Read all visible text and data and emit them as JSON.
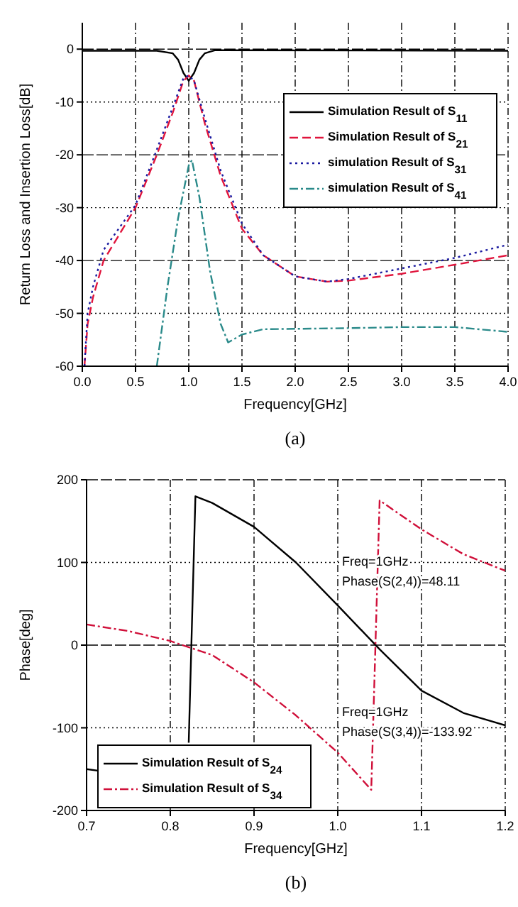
{
  "chart_data": [
    {
      "type": "line",
      "xlabel": "Frequency[GHz]",
      "ylabel": "Return Loss and Insertion Loss[dB]",
      "xlim": [
        0,
        4
      ],
      "ylim": [
        -60,
        5
      ],
      "xticks": [
        {
          "value": 0,
          "label": "0.0"
        },
        {
          "value": 0.5,
          "label": "0.5"
        },
        {
          "value": 1,
          "label": "1.0"
        },
        {
          "value": 1.5,
          "label": "1.5"
        },
        {
          "value": 2,
          "label": "2.0"
        },
        {
          "value": 2.5,
          "label": "2.5"
        },
        {
          "value": 3,
          "label": "3.0"
        },
        {
          "value": 3.5,
          "label": "3.5"
        },
        {
          "value": 4,
          "label": "4.0"
        }
      ],
      "yticks": [
        0,
        -10,
        -20,
        -30,
        -40,
        -50,
        -60
      ],
      "grid": true,
      "legend": "top right",
      "annotations": [
        "(a)"
      ],
      "series": [
        {
          "name": "Simulation Result of S$_{11}$",
          "color": "#000000",
          "line_style": "solid",
          "x": [
            0,
            0.7,
            0.85,
            0.9,
            0.95,
            1.0,
            1.05,
            1.1,
            1.15,
            1.25,
            4
          ],
          "values": [
            -0.3,
            -0.3,
            -0.8,
            -2,
            -4.5,
            -6,
            -4.5,
            -2,
            -0.8,
            -0.2,
            -0.3
          ]
        },
        {
          "name": "Simulation Result of S$_{21}$",
          "color": "#e0143c",
          "line_style": "dashed",
          "x": [
            0.02,
            0.05,
            0.1,
            0.2,
            0.5,
            0.7,
            0.85,
            0.95,
            1.0,
            1.05,
            1.15,
            1.3,
            1.5,
            1.7,
            2.0,
            2.3,
            2.5,
            3.0,
            3.5,
            4.0
          ],
          "values": [
            -60,
            -52,
            -47,
            -40,
            -30,
            -20,
            -12,
            -6,
            -5,
            -6,
            -14,
            -24,
            -34,
            -39,
            -43,
            -44,
            -43.8,
            -42.5,
            -40.8,
            -39
          ]
        },
        {
          "name": "simulation Result of S$_{31}$",
          "color": "#1a1aa0",
          "line_style": "dotted",
          "x": [
            0.02,
            0.05,
            0.1,
            0.2,
            0.5,
            0.7,
            0.85,
            0.95,
            1.0,
            1.05,
            1.15,
            1.3,
            1.5,
            1.7,
            2.0,
            2.3,
            2.5,
            3.0,
            3.5,
            4.0
          ],
          "values": [
            -60,
            -50,
            -45,
            -38,
            -29.5,
            -19,
            -11,
            -5.5,
            -5,
            -6,
            -13,
            -23,
            -33,
            -39,
            -43,
            -44,
            -43.5,
            -41.5,
            -39.5,
            -37
          ]
        },
        {
          "name": "simulation Result of S$_{41}$",
          "color": "#2a8a8a",
          "line_style": "dashdot",
          "x": [
            0.7,
            0.8,
            0.9,
            1.0,
            1.03,
            1.1,
            1.2,
            1.3,
            1.37,
            1.5,
            1.7,
            2.5,
            3.0,
            3.5,
            4.0
          ],
          "values": [
            -60,
            -45,
            -32,
            -22,
            -21,
            -28,
            -42,
            -52,
            -55.5,
            -54,
            -53,
            -52.8,
            -52.6,
            -52.6,
            -53.5
          ]
        }
      ]
    },
    {
      "type": "line",
      "xlabel": "Frequency[GHz]",
      "ylabel": "Phase[deg]",
      "xlim": [
        0.7,
        1.2
      ],
      "ylim": [
        -200,
        200
      ],
      "xticks": [
        0.7,
        0.8,
        0.9,
        {
          "value": 1,
          "label": "1.0"
        },
        1.1,
        1.2
      ],
      "yticks": [
        200,
        100,
        0,
        -100,
        -200
      ],
      "grid": true,
      "legend": "bottom left",
      "annotations": [
        {
          "text": "Freq=1GHz\nPhase(S(2,4))=48.11",
          "x": 1.0,
          "y": 48.11
        },
        {
          "text": "Freq=1GHz\nPhase(S(3,4))=-133.92",
          "x": 1.0,
          "y": -133.92
        },
        "(b)"
      ],
      "series": [
        {
          "name": "Simulation Result of S$_{24}$",
          "color": "#000000",
          "line_style": "solid",
          "x": [
            0.7,
            0.715,
            0.72,
            0.822,
            0.83,
            0.85,
            0.9,
            0.95,
            1.0,
            1.05,
            1.1,
            1.15,
            1.2
          ],
          "values": [
            -150,
            -152,
            null,
            -118,
            180,
            172,
            143,
            100,
            48,
            -5,
            -55,
            -82,
            -97
          ]
        },
        {
          "name": "Simulation Result of S$_{34}$",
          "color": "#d0103a",
          "line_style": "dashdot",
          "x": [
            0.7,
            0.75,
            0.8,
            0.85,
            0.9,
            0.95,
            1.0,
            1.04,
            1.05,
            1.1,
            1.15,
            1.2
          ],
          "values": [
            25,
            17,
            5,
            -12,
            -45,
            -85,
            -130,
            -175,
            175,
            140,
            110,
            90
          ]
        }
      ]
    }
  ]
}
